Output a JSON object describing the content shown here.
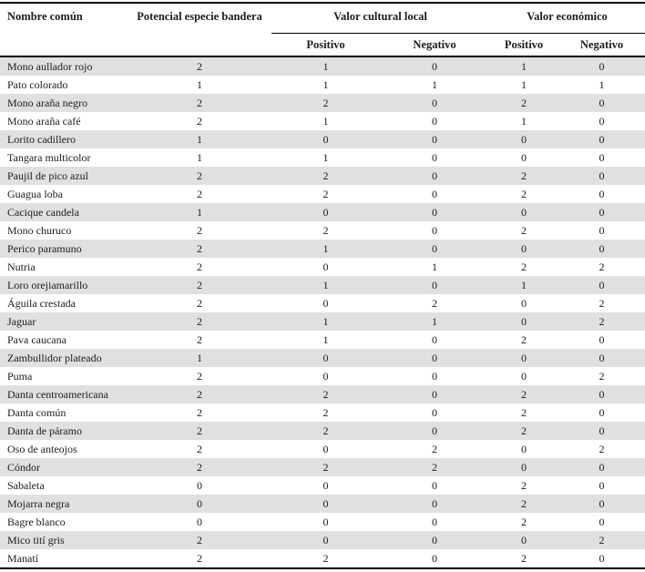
{
  "colors": {
    "stripe": "#e0e0e0",
    "rule": "#000000",
    "text": "#1c1c1c"
  },
  "table": {
    "headers": {
      "name": "Nombre común",
      "flagship": "Potencial especie bandera",
      "cultural_group": "Valor cultural local",
      "economic_group": "Valor económico",
      "positive": "Positivo",
      "negative": "Negativo"
    },
    "rows": [
      {
        "name": "Mono aullador rojo",
        "flagship": 2,
        "cultural_positive": 1,
        "cultural_negative": 0,
        "economic_positive": 1,
        "economic_negative": 0
      },
      {
        "name": "Pato colorado",
        "flagship": 1,
        "cultural_positive": 1,
        "cultural_negative": 1,
        "economic_positive": 1,
        "economic_negative": 1
      },
      {
        "name": "Mono araña negro",
        "flagship": 2,
        "cultural_positive": 2,
        "cultural_negative": 0,
        "economic_positive": 2,
        "economic_negative": 0
      },
      {
        "name": "Mono araña café",
        "flagship": 2,
        "cultural_positive": 1,
        "cultural_negative": 0,
        "economic_positive": 1,
        "economic_negative": 0
      },
      {
        "name": "Lorito cadillero",
        "flagship": 1,
        "cultural_positive": 0,
        "cultural_negative": 0,
        "economic_positive": 0,
        "economic_negative": 0
      },
      {
        "name": "Tangara multicolor",
        "flagship": 1,
        "cultural_positive": 1,
        "cultural_negative": 0,
        "economic_positive": 0,
        "economic_negative": 0
      },
      {
        "name": "Paujil de pico azul",
        "flagship": 2,
        "cultural_positive": 2,
        "cultural_negative": 0,
        "economic_positive": 2,
        "economic_negative": 0
      },
      {
        "name": "Guagua loba",
        "flagship": 2,
        "cultural_positive": 2,
        "cultural_negative": 0,
        "economic_positive": 2,
        "economic_negative": 0
      },
      {
        "name": "Cacique candela",
        "flagship": 1,
        "cultural_positive": 0,
        "cultural_negative": 0,
        "economic_positive": 0,
        "economic_negative": 0
      },
      {
        "name": "Mono churuco",
        "flagship": 2,
        "cultural_positive": 2,
        "cultural_negative": 0,
        "economic_positive": 2,
        "economic_negative": 0
      },
      {
        "name": "Perico paramuno",
        "flagship": 2,
        "cultural_positive": 1,
        "cultural_negative": 0,
        "economic_positive": 0,
        "economic_negative": 0
      },
      {
        "name": "Nutria",
        "flagship": 2,
        "cultural_positive": 0,
        "cultural_negative": 1,
        "economic_positive": 2,
        "economic_negative": 2
      },
      {
        "name": "Loro orejiamarillo",
        "flagship": 2,
        "cultural_positive": 1,
        "cultural_negative": 0,
        "economic_positive": 1,
        "economic_negative": 0
      },
      {
        "name": "Águila crestada",
        "flagship": 2,
        "cultural_positive": 0,
        "cultural_negative": 2,
        "economic_positive": 0,
        "economic_negative": 2
      },
      {
        "name": "Jaguar",
        "flagship": 2,
        "cultural_positive": 1,
        "cultural_negative": 1,
        "economic_positive": 0,
        "economic_negative": 2
      },
      {
        "name": "Pava caucana",
        "flagship": 2,
        "cultural_positive": 1,
        "cultural_negative": 0,
        "economic_positive": 2,
        "economic_negative": 0
      },
      {
        "name": "Zambullidor plateado",
        "flagship": 1,
        "cultural_positive": 0,
        "cultural_negative": 0,
        "economic_positive": 0,
        "economic_negative": 0
      },
      {
        "name": "Puma",
        "flagship": 2,
        "cultural_positive": 0,
        "cultural_negative": 0,
        "economic_positive": 0,
        "economic_negative": 2
      },
      {
        "name": "Danta centroamericana",
        "flagship": 2,
        "cultural_positive": 2,
        "cultural_negative": 0,
        "economic_positive": 2,
        "economic_negative": 0
      },
      {
        "name": "Danta común",
        "flagship": 2,
        "cultural_positive": 2,
        "cultural_negative": 0,
        "economic_positive": 2,
        "economic_negative": 0
      },
      {
        "name": "Danta de páramo",
        "flagship": 2,
        "cultural_positive": 2,
        "cultural_negative": 0,
        "economic_positive": 2,
        "economic_negative": 0
      },
      {
        "name": "Oso de anteojos",
        "flagship": 2,
        "cultural_positive": 0,
        "cultural_negative": 2,
        "economic_positive": 0,
        "economic_negative": 2
      },
      {
        "name": "Cóndor",
        "flagship": 2,
        "cultural_positive": 2,
        "cultural_negative": 2,
        "economic_positive": 0,
        "economic_negative": 0
      },
      {
        "name": "Sabaleta",
        "flagship": 0,
        "cultural_positive": 0,
        "cultural_negative": 0,
        "economic_positive": 2,
        "economic_negative": 0
      },
      {
        "name": "Mojarra negra",
        "flagship": 0,
        "cultural_positive": 0,
        "cultural_negative": 0,
        "economic_positive": 2,
        "economic_negative": 0
      },
      {
        "name": "Bagre blanco",
        "flagship": 0,
        "cultural_positive": 0,
        "cultural_negative": 0,
        "economic_positive": 2,
        "economic_negative": 0
      },
      {
        "name": "Mico tití gris",
        "flagship": 2,
        "cultural_positive": 0,
        "cultural_negative": 0,
        "economic_positive": 0,
        "economic_negative": 2
      },
      {
        "name": "Manatí",
        "flagship": 2,
        "cultural_positive": 2,
        "cultural_negative": 0,
        "economic_positive": 2,
        "economic_negative": 0
      }
    ]
  }
}
